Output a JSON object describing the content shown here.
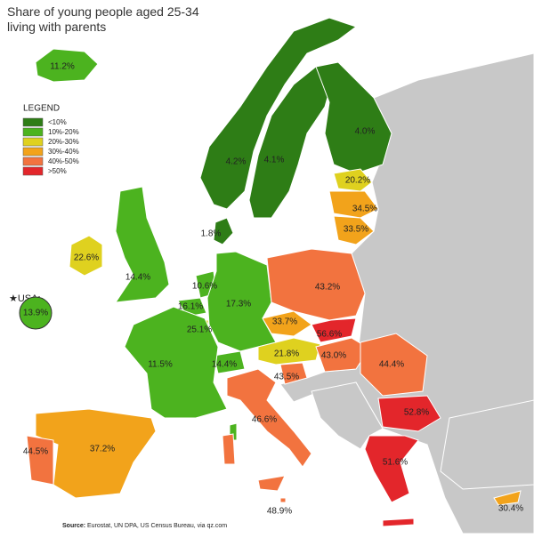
{
  "title": [
    "Share of young people aged 25-34",
    "living with parents"
  ],
  "legend": {
    "title": "LEGEND",
    "items": [
      {
        "label": "<10%",
        "color": "#2e7d16"
      },
      {
        "label": "10%-20%",
        "color": "#4cb31f"
      },
      {
        "label": "20%-30%",
        "color": "#dfd11f"
      },
      {
        "label": "30%-40%",
        "color": "#f2a31b"
      },
      {
        "label": "40%-50%",
        "color": "#f2733f"
      },
      {
        "label": ">50%",
        "color": "#e3262b"
      }
    ]
  },
  "usa_label": "★USA:",
  "regions": [
    {
      "value": 11.2,
      "label": "11.2%",
      "color": "#4cb31f"
    },
    {
      "value": 4.2,
      "label": "4.2%",
      "color": "#2e7d16"
    },
    {
      "value": 4.1,
      "label": "4.1%",
      "color": "#2e7d16"
    },
    {
      "value": 4.0,
      "label": "4.0%",
      "color": "#2e7d16"
    },
    {
      "value": 20.2,
      "label": "20.2%",
      "color": "#dfd11f"
    },
    {
      "value": 34.5,
      "label": "34.5%",
      "color": "#f2a31b"
    },
    {
      "value": 33.5,
      "label": "33.5%",
      "color": "#f2a31b"
    },
    {
      "value": 1.8,
      "label": "1.8%",
      "color": "#2e7d16"
    },
    {
      "value": 22.6,
      "label": "22.6%",
      "color": "#dfd11f"
    },
    {
      "value": 14.4,
      "label": "14.4%",
      "color": "#4cb31f"
    },
    {
      "value": 10.6,
      "label": "10.6%",
      "color": "#4cb31f"
    },
    {
      "value": 16.1,
      "label": "16.1%",
      "color": "#4cb31f"
    },
    {
      "value": 25.1,
      "label": "25.1%",
      "color": "#dfd11f"
    },
    {
      "value": 17.3,
      "label": "17.3%",
      "color": "#4cb31f"
    },
    {
      "value": 43.2,
      "label": "43.2%",
      "color": "#f2733f"
    },
    {
      "value": 33.7,
      "label": "33.7%",
      "color": "#f2a31b"
    },
    {
      "value": 56.6,
      "label": "56.6%",
      "color": "#e3262b"
    },
    {
      "value": 21.8,
      "label": "21.8%",
      "color": "#dfd11f"
    },
    {
      "value": 43.0,
      "label": "43.0%",
      "color": "#f2733f"
    },
    {
      "value": 43.5,
      "label": "43.5%",
      "color": "#f2733f"
    },
    {
      "value": 14.4,
      "label": "14.4%",
      "color": "#4cb31f"
    },
    {
      "value": 11.5,
      "label": "11.5%",
      "color": "#4cb31f"
    },
    {
      "value": 44.4,
      "label": "44.4%",
      "color": "#f2733f"
    },
    {
      "value": 52.8,
      "label": "52.8%",
      "color": "#e3262b"
    },
    {
      "value": 51.6,
      "label": "51.6%",
      "color": "#e3262b"
    },
    {
      "value": 46.6,
      "label": "46.6%",
      "color": "#f2733f"
    },
    {
      "value": 37.2,
      "label": "37.2%",
      "color": "#f2a31b"
    },
    {
      "value": 44.5,
      "label": "44.5%",
      "color": "#f2733f"
    },
    {
      "value": 30.4,
      "label": "30.4%",
      "color": "#f2a31b"
    },
    {
      "value": 48.9,
      "label": "48.9%",
      "color": "#f2733f"
    },
    {
      "value": 13.9,
      "label": "13.9%",
      "color": "#4cb31f"
    }
  ],
  "source": {
    "prefix": "Source:",
    "text": "Eurostat, UN DPA, US Census Bureau, via qz.com"
  }
}
